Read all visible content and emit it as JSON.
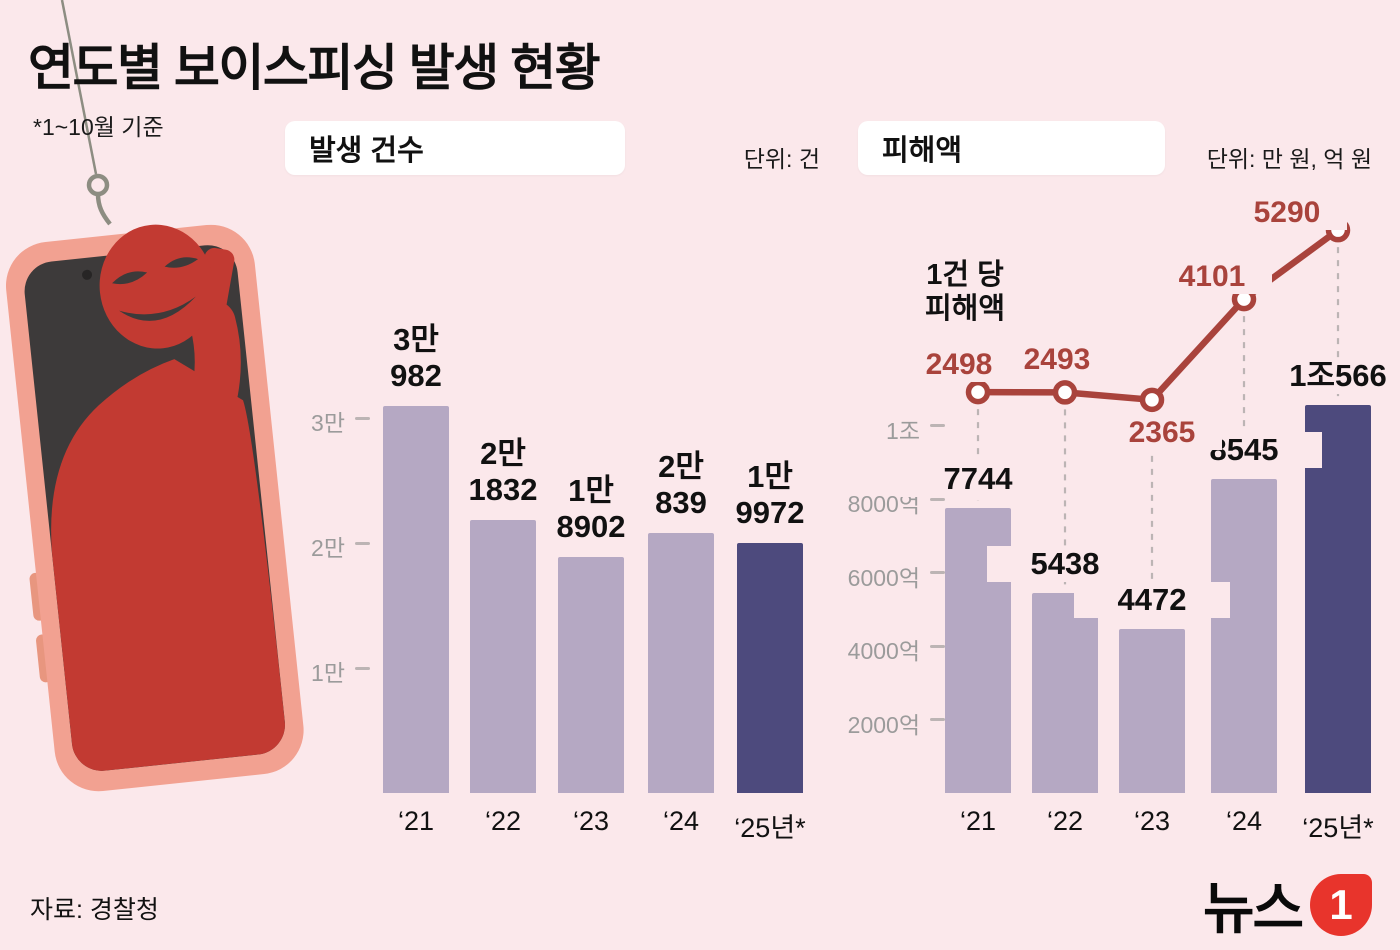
{
  "title": "연도별 보이스피싱 발생 현황",
  "subtitle": "*1~10월 기준",
  "source": "자료: 경찰청",
  "logo": {
    "text": "뉴스",
    "badge": "1"
  },
  "colors": {
    "background": "#fbe8eb",
    "bar": "#b5a8c3",
    "bar_highlight": "#4d4a7d",
    "line": "#a9433c",
    "axis_text": "#9b9b9b",
    "guide": "#bcb4b4",
    "phone": "#f2a191",
    "screen": "#3d3a3a",
    "silhouette": "#c23a32",
    "logo_red": "#e8342c"
  },
  "chart_data": [
    {
      "type": "bar",
      "title": "발생 건수",
      "unit": "단위: 건",
      "categories": [
        "‘21",
        "‘22",
        "‘23",
        "‘24",
        "‘25년*"
      ],
      "values": [
        30982,
        21832,
        18902,
        20839,
        19972
      ],
      "value_labels": [
        [
          "3만",
          "982"
        ],
        [
          "2만",
          "1832"
        ],
        [
          "1만",
          "8902"
        ],
        [
          "2만",
          "839"
        ],
        [
          "1만",
          "9972"
        ]
      ],
      "yticks": [
        {
          "value": 10000,
          "label": "1만"
        },
        {
          "value": 20000,
          "label": "2만"
        },
        {
          "value": 30000,
          "label": "3만"
        }
      ],
      "ylim": [
        0,
        32000
      ],
      "highlight_last_index": 4,
      "legend_position": "none",
      "grid": false
    },
    {
      "type": "bar+line",
      "title": "피해액",
      "unit": "단위: 만 원, 억 원",
      "categories": [
        "‘21",
        "‘22",
        "‘23",
        "‘24",
        "‘25년*"
      ],
      "bar_values": [
        7744,
        5438,
        4472,
        8545,
        10566
      ],
      "bar_labels": [
        "7744",
        "5438",
        "4472",
        "8545",
        "1조566"
      ],
      "line_values": [
        2498,
        2493,
        2365,
        4101,
        5290
      ],
      "line_annotation": [
        "1건 당",
        "피해액"
      ],
      "yticks": [
        {
          "value": 2000,
          "label": "2000억"
        },
        {
          "value": 4000,
          "label": "4000억"
        },
        {
          "value": 6000,
          "label": "6000억"
        },
        {
          "value": 8000,
          "label": "8000억"
        },
        {
          "value": 10000,
          "label": "1조"
        }
      ],
      "ylim": [
        0,
        10800
      ],
      "highlight_last_index": 4,
      "legend_position": "none",
      "grid": false
    }
  ]
}
